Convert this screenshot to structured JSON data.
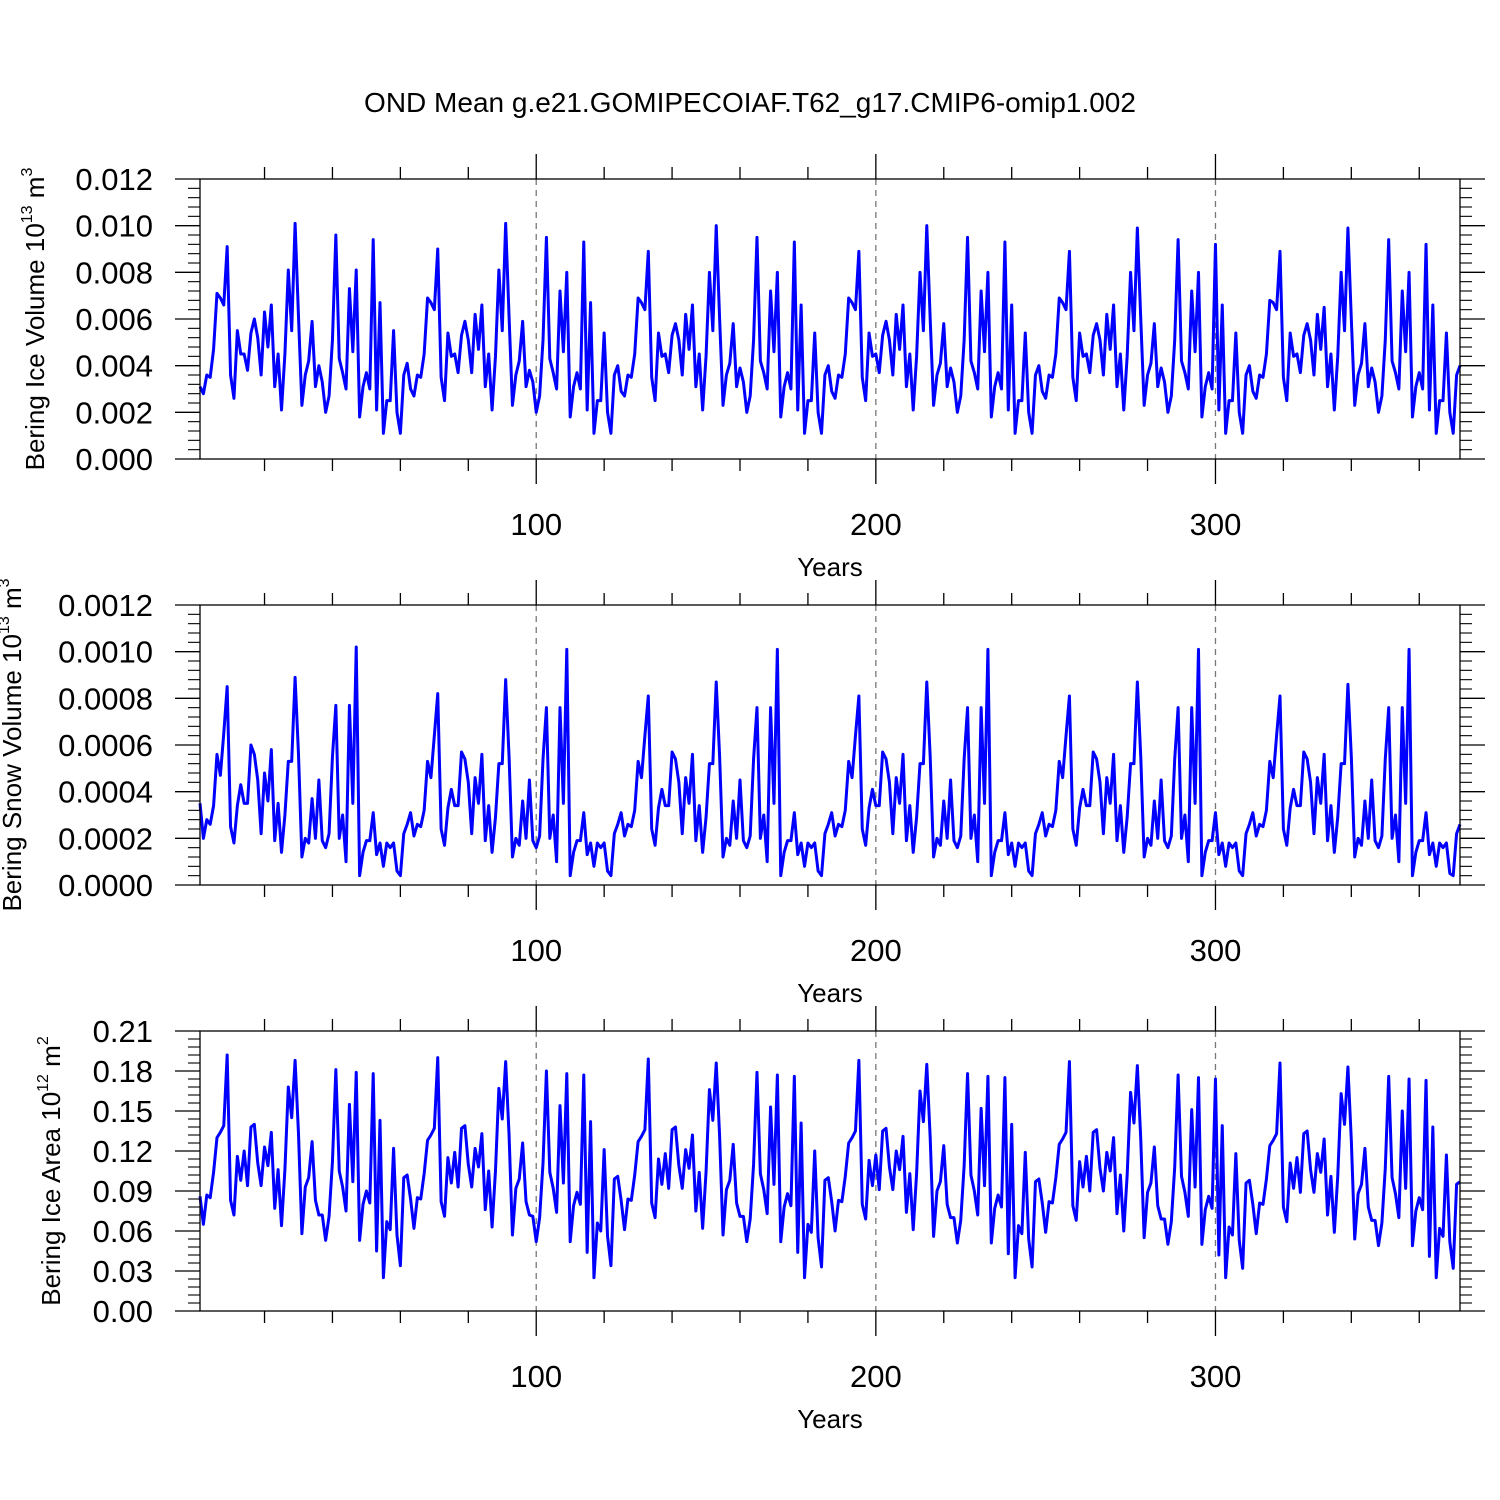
{
  "title": "OND Mean g.e21.GOMIPECOIAF.T62_g17.CMIP6-omip1.002",
  "series_color": "#0000ff",
  "chart_data": [
    {
      "type": "line",
      "ylabel_main": "Bering Ice Volume 10",
      "ylabel_exp": "13",
      "ylabel_unit": " m",
      "ylabel_unit_exp": "3",
      "xlabel": "Years",
      "xlim": [
        1,
        372
      ],
      "ylim": [
        0,
        0.012
      ],
      "x_ticks": [
        "100",
        "200",
        "300"
      ],
      "y_ticks": [
        "0.000",
        "0.002",
        "0.004",
        "0.006",
        "0.008",
        "0.010",
        "0.012"
      ],
      "values": [
        0.0031,
        0.0028,
        0.0036,
        0.0035,
        0.0047,
        0.0071,
        0.0069,
        0.0066,
        0.0091,
        0.0036,
        0.0026,
        0.0055,
        0.0045,
        0.0045,
        0.0038,
        0.0054,
        0.006,
        0.0052,
        0.0036,
        0.0063,
        0.0048,
        0.0066,
        0.0031,
        0.0045,
        0.0021,
        0.0045,
        0.0081,
        0.0055,
        0.0101,
        0.0061,
        0.0023,
        0.0036,
        0.0042,
        0.0059,
        0.0031,
        0.004,
        0.0033,
        0.002,
        0.0027,
        0.0051,
        0.0096,
        0.0043,
        0.0037,
        0.003,
        0.0073,
        0.0046,
        0.0081,
        0.0018,
        0.0031,
        0.0037,
        0.003,
        0.0094,
        0.0021,
        0.0067,
        0.0011,
        0.0025,
        0.0025,
        0.0055,
        0.002,
        0.0011,
        0.0036,
        0.0041,
        0.003,
        0.0027,
        0.0036,
        0.0035,
        0.0045,
        0.0069,
        0.0067,
        0.0064,
        0.009,
        0.0035,
        0.0025,
        0.0054,
        0.0044,
        0.0045,
        0.0037,
        0.0053,
        0.0059,
        0.0051,
        0.0037,
        0.0062,
        0.0047,
        0.0066,
        0.0031,
        0.0045,
        0.0021,
        0.0044,
        0.0081,
        0.0055,
        0.0101,
        0.0061,
        0.0023,
        0.0036,
        0.0042,
        0.0059,
        0.0031,
        0.0038,
        0.0033,
        0.002,
        0.0027,
        0.0051,
        0.0095,
        0.0043,
        0.0037,
        0.003,
        0.0072,
        0.0046,
        0.008,
        0.0018,
        0.0031,
        0.0037,
        0.003,
        0.0093,
        0.0021,
        0.0067,
        0.0011,
        0.0025,
        0.0025,
        0.0054,
        0.002,
        0.0011,
        0.0036,
        0.004,
        0.0029,
        0.0027,
        0.0036,
        0.0035,
        0.0045,
        0.0069,
        0.0067,
        0.0064,
        0.0089,
        0.0035,
        0.0025,
        0.0054,
        0.0044,
        0.0045,
        0.0037,
        0.0053,
        0.0058,
        0.0051,
        0.0036,
        0.0062,
        0.0047,
        0.0066,
        0.0031,
        0.0045,
        0.0021,
        0.0044,
        0.008,
        0.0055,
        0.01,
        0.006,
        0.0023,
        0.0036,
        0.0041,
        0.0058,
        0.0031,
        0.0039,
        0.0033,
        0.002,
        0.0027,
        0.0051,
        0.0095,
        0.0042,
        0.0037,
        0.003,
        0.0072,
        0.0046,
        0.008,
        0.0018,
        0.0031,
        0.0037,
        0.003,
        0.0093,
        0.0021,
        0.0066,
        0.0011,
        0.0025,
        0.0025,
        0.0054,
        0.002,
        0.0011,
        0.0036,
        0.004,
        0.0029,
        0.0026,
        0.0036,
        0.0035,
        0.0045,
        0.0069,
        0.0067,
        0.0064,
        0.0089,
        0.0035,
        0.0025,
        0.0054,
        0.0044,
        0.0045,
        0.0037,
        0.0053,
        0.0059,
        0.0051,
        0.0036,
        0.0062,
        0.0047,
        0.0066,
        0.0031,
        0.0045,
        0.0021,
        0.0044,
        0.008,
        0.0055,
        0.01,
        0.006,
        0.0023,
        0.0036,
        0.0041,
        0.0058,
        0.0031,
        0.0039,
        0.0033,
        0.002,
        0.0027,
        0.0051,
        0.0095,
        0.0042,
        0.0037,
        0.003,
        0.0072,
        0.0046,
        0.008,
        0.0018,
        0.0031,
        0.0037,
        0.003,
        0.0093,
        0.0021,
        0.0066,
        0.0011,
        0.0025,
        0.0025,
        0.0054,
        0.002,
        0.0011,
        0.0036,
        0.004,
        0.0029,
        0.0026,
        0.0036,
        0.0035,
        0.0045,
        0.0069,
        0.0067,
        0.0064,
        0.0089,
        0.0035,
        0.0025,
        0.0054,
        0.0044,
        0.0045,
        0.0037,
        0.0053,
        0.0058,
        0.0051,
        0.0036,
        0.0062,
        0.0047,
        0.0066,
        0.0031,
        0.0045,
        0.0021,
        0.0044,
        0.008,
        0.0055,
        0.0099,
        0.006,
        0.0023,
        0.0036,
        0.0041,
        0.0058,
        0.0031,
        0.0039,
        0.0033,
        0.002,
        0.0027,
        0.0051,
        0.0094,
        0.0042,
        0.0037,
        0.003,
        0.0072,
        0.0046,
        0.008,
        0.0018,
        0.0031,
        0.0037,
        0.003,
        0.0092,
        0.0021,
        0.0066,
        0.0011,
        0.0025,
        0.0025,
        0.0054,
        0.002,
        0.0011,
        0.0036,
        0.004,
        0.0029,
        0.0026,
        0.0036,
        0.0035,
        0.0045,
        0.0068,
        0.0067,
        0.0064,
        0.0089,
        0.0035,
        0.0025,
        0.0054,
        0.0044,
        0.0045,
        0.0037,
        0.0053,
        0.0058,
        0.0051,
        0.0036,
        0.0062,
        0.0047,
        0.0065,
        0.0031,
        0.0045,
        0.0021,
        0.0044,
        0.008,
        0.0055,
        0.0099,
        0.006,
        0.0023,
        0.0036,
        0.0041,
        0.0058,
        0.0031,
        0.0039,
        0.0033,
        0.002,
        0.0027,
        0.0051,
        0.0094,
        0.0042,
        0.0037,
        0.003,
        0.0072,
        0.0046,
        0.008,
        0.0018,
        0.0031,
        0.0037,
        0.003,
        0.0092,
        0.0021,
        0.0066,
        0.0011,
        0.0025,
        0.0025,
        0.0054,
        0.002,
        0.0011,
        0.0036,
        0.004
      ]
    },
    {
      "type": "line",
      "ylabel_main": "Bering Snow Volume 10",
      "ylabel_exp": "13",
      "ylabel_unit": " m",
      "ylabel_unit_exp": "3",
      "xlabel": "Years",
      "xlim": [
        1,
        372
      ],
      "ylim": [
        0,
        0.0012
      ],
      "x_ticks": [
        "100",
        "200",
        "300"
      ],
      "y_ticks": [
        "0.0000",
        "0.0002",
        "0.0004",
        "0.0006",
        "0.0008",
        "0.0010",
        "0.0012"
      ],
      "values": [
        0.00035,
        0.0002,
        0.00028,
        0.00026,
        0.00034,
        0.00056,
        0.00047,
        0.00065,
        0.00085,
        0.00025,
        0.00018,
        0.00034,
        0.00043,
        0.00035,
        0.00035,
        0.0006,
        0.00056,
        0.00045,
        0.00022,
        0.00048,
        0.00036,
        0.00058,
        0.00019,
        0.00035,
        0.00014,
        0.0003,
        0.00053,
        0.00053,
        0.00089,
        0.00056,
        0.00012,
        0.0002,
        0.00018,
        0.00037,
        0.0002,
        0.00045,
        0.00019,
        0.00016,
        0.00022,
        0.00055,
        0.00077,
        0.0002,
        0.0003,
        0.0001,
        0.00077,
        0.00035,
        0.00102,
        4e-05,
        0.00014,
        0.00019,
        0.00019,
        0.00031,
        0.00013,
        0.00018,
        8e-05,
        0.00018,
        0.00016,
        0.00018,
        6e-05,
        4e-05,
        0.00022,
        0.00026,
        0.00031,
        0.00021,
        0.00026,
        0.00025,
        0.00032,
        0.00053,
        0.00046,
        0.00064,
        0.00082,
        0.00024,
        0.00017,
        0.00033,
        0.00041,
        0.00034,
        0.00034,
        0.00057,
        0.00054,
        0.00044,
        0.00022,
        0.00046,
        0.00035,
        0.00056,
        0.00019,
        0.00034,
        0.00014,
        0.00029,
        0.00052,
        0.00052,
        0.00088,
        0.00055,
        0.00012,
        0.0002,
        0.00017,
        0.00036,
        0.0002,
        0.00045,
        0.00019,
        0.00016,
        0.00021,
        0.00054,
        0.00076,
        0.0002,
        0.0003,
        0.0001,
        0.00076,
        0.00035,
        0.00101,
        4e-05,
        0.00014,
        0.00019,
        0.00019,
        0.00031,
        0.00013,
        0.00018,
        8e-05,
        0.00018,
        0.00016,
        0.00018,
        6e-05,
        4e-05,
        0.00022,
        0.00026,
        0.00031,
        0.00021,
        0.00026,
        0.00025,
        0.00032,
        0.00053,
        0.00046,
        0.00064,
        0.00081,
        0.00024,
        0.00017,
        0.00033,
        0.00041,
        0.00034,
        0.00034,
        0.00057,
        0.00054,
        0.00044,
        0.00022,
        0.00046,
        0.00035,
        0.00056,
        0.00019,
        0.00034,
        0.00014,
        0.00029,
        0.00052,
        0.00052,
        0.00087,
        0.00055,
        0.00012,
        0.0002,
        0.00017,
        0.00036,
        0.0002,
        0.00045,
        0.00019,
        0.00016,
        0.00021,
        0.00054,
        0.00076,
        0.0002,
        0.0003,
        0.0001,
        0.00076,
        0.00035,
        0.00101,
        4e-05,
        0.00014,
        0.00019,
        0.00019,
        0.00031,
        0.00013,
        0.00018,
        8e-05,
        0.00018,
        0.00016,
        0.00018,
        6e-05,
        4e-05,
        0.00022,
        0.00026,
        0.00031,
        0.00021,
        0.00026,
        0.00025,
        0.00032,
        0.00053,
        0.00046,
        0.00064,
        0.00081,
        0.00024,
        0.00017,
        0.00033,
        0.00041,
        0.00034,
        0.00034,
        0.00057,
        0.00054,
        0.00044,
        0.00022,
        0.00046,
        0.00035,
        0.00056,
        0.00019,
        0.00034,
        0.00014,
        0.00029,
        0.00052,
        0.00052,
        0.00087,
        0.00055,
        0.00012,
        0.0002,
        0.00017,
        0.00036,
        0.0002,
        0.00045,
        0.00019,
        0.00016,
        0.00021,
        0.00054,
        0.00076,
        0.0002,
        0.0003,
        0.0001,
        0.00076,
        0.00035,
        0.00101,
        4e-05,
        0.00014,
        0.00019,
        0.00019,
        0.00031,
        0.00013,
        0.00018,
        8e-05,
        0.00018,
        0.00016,
        0.00018,
        6e-05,
        4e-05,
        0.00022,
        0.00026,
        0.00031,
        0.00021,
        0.00026,
        0.00025,
        0.00032,
        0.00053,
        0.00046,
        0.00064,
        0.00081,
        0.00024,
        0.00017,
        0.00033,
        0.00041,
        0.00034,
        0.00034,
        0.00057,
        0.00054,
        0.00044,
        0.00022,
        0.00046,
        0.00035,
        0.00056,
        0.00019,
        0.00034,
        0.00014,
        0.00029,
        0.00052,
        0.00052,
        0.00087,
        0.00055,
        0.00012,
        0.0002,
        0.00017,
        0.00036,
        0.0002,
        0.00045,
        0.00019,
        0.00016,
        0.00021,
        0.00054,
        0.00076,
        0.0002,
        0.0003,
        0.0001,
        0.00076,
        0.00035,
        0.00101,
        4e-05,
        0.00014,
        0.00019,
        0.00019,
        0.00031,
        0.00013,
        0.00018,
        8e-05,
        0.00018,
        0.00016,
        0.00018,
        6e-05,
        4e-05,
        0.00022,
        0.00026,
        0.00031,
        0.00021,
        0.00026,
        0.00025,
        0.00032,
        0.00053,
        0.00046,
        0.00064,
        0.00081,
        0.00024,
        0.00017,
        0.00033,
        0.00041,
        0.00034,
        0.00034,
        0.00057,
        0.00054,
        0.00044,
        0.00022,
        0.00046,
        0.00035,
        0.00056,
        0.00019,
        0.00034,
        0.00014,
        0.00029,
        0.00052,
        0.00052,
        0.00086,
        0.00055,
        0.00012,
        0.0002,
        0.00017,
        0.00036,
        0.0002,
        0.00045,
        0.00019,
        0.00016,
        0.00021,
        0.00054,
        0.00076,
        0.0002,
        0.0003,
        0.0001,
        0.00076,
        0.00035,
        0.00101,
        4e-05,
        0.00014,
        0.00019,
        0.00019,
        0.00031,
        0.00013,
        0.00018,
        8e-05,
        0.00018,
        0.00016,
        0.00018,
        5e-05,
        4e-05,
        0.00022,
        0.00026
      ]
    },
    {
      "type": "line",
      "ylabel_main": "Bering Ice Area 10",
      "ylabel_exp": "12",
      "ylabel_unit": " m",
      "ylabel_unit_exp": "2",
      "xlabel": "Years",
      "xlim": [
        1,
        372
      ],
      "ylim": [
        0,
        0.21
      ],
      "x_ticks": [
        "100",
        "200",
        "300"
      ],
      "y_ticks": [
        "0.00",
        "0.03",
        "0.06",
        "0.09",
        "0.12",
        "0.15",
        "0.18",
        "0.21"
      ],
      "values": [
        0.086,
        0.065,
        0.087,
        0.085,
        0.104,
        0.13,
        0.134,
        0.139,
        0.192,
        0.083,
        0.072,
        0.116,
        0.098,
        0.12,
        0.094,
        0.138,
        0.14,
        0.111,
        0.094,
        0.123,
        0.109,
        0.134,
        0.077,
        0.106,
        0.064,
        0.106,
        0.168,
        0.145,
        0.188,
        0.133,
        0.058,
        0.093,
        0.1,
        0.127,
        0.083,
        0.072,
        0.072,
        0.053,
        0.071,
        0.112,
        0.181,
        0.105,
        0.093,
        0.075,
        0.155,
        0.097,
        0.179,
        0.053,
        0.08,
        0.09,
        0.081,
        0.178,
        0.045,
        0.143,
        0.025,
        0.067,
        0.061,
        0.122,
        0.057,
        0.034,
        0.1,
        0.102,
        0.084,
        0.062,
        0.085,
        0.084,
        0.103,
        0.128,
        0.132,
        0.137,
        0.19,
        0.082,
        0.071,
        0.115,
        0.096,
        0.119,
        0.093,
        0.137,
        0.139,
        0.11,
        0.093,
        0.122,
        0.108,
        0.133,
        0.076,
        0.105,
        0.063,
        0.105,
        0.167,
        0.144,
        0.187,
        0.132,
        0.057,
        0.092,
        0.099,
        0.126,
        0.082,
        0.072,
        0.071,
        0.052,
        0.07,
        0.111,
        0.18,
        0.104,
        0.092,
        0.074,
        0.154,
        0.096,
        0.178,
        0.052,
        0.079,
        0.089,
        0.08,
        0.177,
        0.044,
        0.142,
        0.025,
        0.066,
        0.06,
        0.121,
        0.056,
        0.034,
        0.099,
        0.101,
        0.083,
        0.061,
        0.084,
        0.083,
        0.102,
        0.127,
        0.131,
        0.136,
        0.189,
        0.081,
        0.07,
        0.114,
        0.095,
        0.118,
        0.092,
        0.136,
        0.138,
        0.109,
        0.092,
        0.121,
        0.107,
        0.132,
        0.075,
        0.104,
        0.062,
        0.104,
        0.166,
        0.143,
        0.186,
        0.131,
        0.057,
        0.091,
        0.098,
        0.125,
        0.081,
        0.071,
        0.071,
        0.052,
        0.069,
        0.11,
        0.179,
        0.103,
        0.091,
        0.073,
        0.153,
        0.095,
        0.177,
        0.052,
        0.078,
        0.088,
        0.079,
        0.176,
        0.044,
        0.141,
        0.025,
        0.065,
        0.059,
        0.12,
        0.055,
        0.033,
        0.098,
        0.1,
        0.082,
        0.06,
        0.083,
        0.082,
        0.101,
        0.126,
        0.13,
        0.135,
        0.188,
        0.08,
        0.069,
        0.113,
        0.094,
        0.117,
        0.091,
        0.135,
        0.137,
        0.108,
        0.091,
        0.12,
        0.106,
        0.131,
        0.074,
        0.103,
        0.061,
        0.103,
        0.165,
        0.142,
        0.185,
        0.13,
        0.056,
        0.09,
        0.097,
        0.124,
        0.08,
        0.07,
        0.07,
        0.051,
        0.068,
        0.109,
        0.178,
        0.102,
        0.09,
        0.072,
        0.152,
        0.094,
        0.176,
        0.051,
        0.077,
        0.087,
        0.078,
        0.175,
        0.043,
        0.14,
        0.025,
        0.064,
        0.058,
        0.119,
        0.054,
        0.033,
        0.097,
        0.099,
        0.081,
        0.059,
        0.082,
        0.081,
        0.1,
        0.125,
        0.129,
        0.134,
        0.187,
        0.079,
        0.068,
        0.112,
        0.093,
        0.116,
        0.09,
        0.134,
        0.136,
        0.107,
        0.09,
        0.119,
        0.105,
        0.13,
        0.073,
        0.102,
        0.06,
        0.102,
        0.164,
        0.141,
        0.184,
        0.129,
        0.055,
        0.089,
        0.096,
        0.123,
        0.079,
        0.069,
        0.069,
        0.05,
        0.067,
        0.108,
        0.177,
        0.101,
        0.089,
        0.071,
        0.151,
        0.093,
        0.175,
        0.05,
        0.076,
        0.086,
        0.077,
        0.174,
        0.042,
        0.139,
        0.025,
        0.063,
        0.057,
        0.118,
        0.053,
        0.032,
        0.096,
        0.098,
        0.08,
        0.058,
        0.081,
        0.08,
        0.099,
        0.124,
        0.128,
        0.133,
        0.186,
        0.078,
        0.067,
        0.111,
        0.092,
        0.115,
        0.089,
        0.133,
        0.135,
        0.106,
        0.089,
        0.118,
        0.104,
        0.129,
        0.072,
        0.101,
        0.059,
        0.101,
        0.163,
        0.14,
        0.183,
        0.128,
        0.054,
        0.088,
        0.095,
        0.122,
        0.078,
        0.068,
        0.068,
        0.049,
        0.066,
        0.107,
        0.176,
        0.1,
        0.088,
        0.07,
        0.15,
        0.092,
        0.174,
        0.049,
        0.075,
        0.085,
        0.076,
        0.173,
        0.041,
        0.138,
        0.025,
        0.062,
        0.056,
        0.117,
        0.052,
        0.032,
        0.095,
        0.097
      ]
    }
  ]
}
